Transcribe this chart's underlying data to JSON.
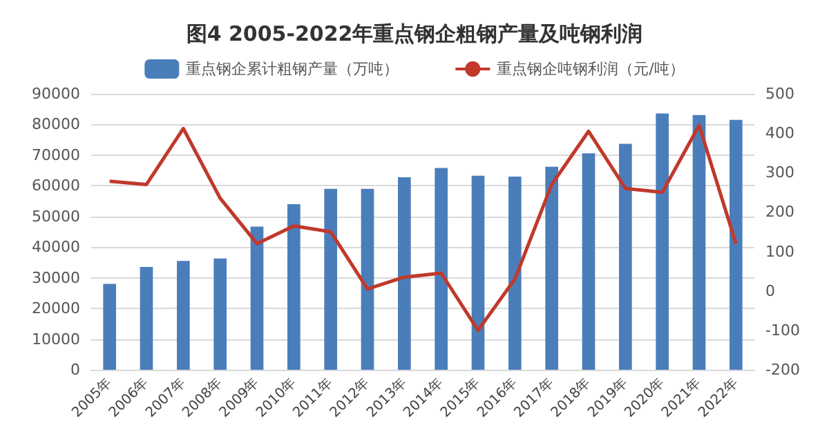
{
  "chart_data": {
    "type": "bar",
    "title": "图4 2005-2022年重点钢企粗钢产量及吨钢利润",
    "categories": [
      "2005年",
      "2006年",
      "2007年",
      "2008年",
      "2009年",
      "2010年",
      "2011年",
      "2012年",
      "2013年",
      "2014年",
      "2015年",
      "2016年",
      "2017年",
      "2018年",
      "2019年",
      "2020年",
      "2021年",
      "2022年"
    ],
    "series": [
      {
        "name": "重点钢企累计粗钢产量（万吨）",
        "color": "#4a7ebb",
        "values": [
          28000,
          33500,
          35500,
          36300,
          46700,
          54000,
          59000,
          59000,
          62800,
          65800,
          63300,
          63000,
          66200,
          70600,
          73700,
          83600,
          83100,
          81500
        ]
      },
      {
        "name": "重点钢企吨钢利润（元/吨）",
        "type": "line",
        "axis": "y2",
        "color": "#c0392b",
        "values": [
          278,
          270,
          412,
          235,
          120,
          165,
          150,
          5,
          35,
          45,
          -100,
          30,
          270,
          405,
          260,
          250,
          420,
          120
        ]
      }
    ],
    "ylim": [
      0,
      90000
    ],
    "yticks": [
      0,
      10000,
      20000,
      30000,
      40000,
      50000,
      60000,
      70000,
      80000,
      90000
    ],
    "y2lim": [
      -200,
      500
    ],
    "y2ticks": [
      -200,
      -100,
      0,
      100,
      200,
      300,
      400,
      500
    ],
    "grid": "y",
    "legend": "top",
    "marker": "none"
  }
}
